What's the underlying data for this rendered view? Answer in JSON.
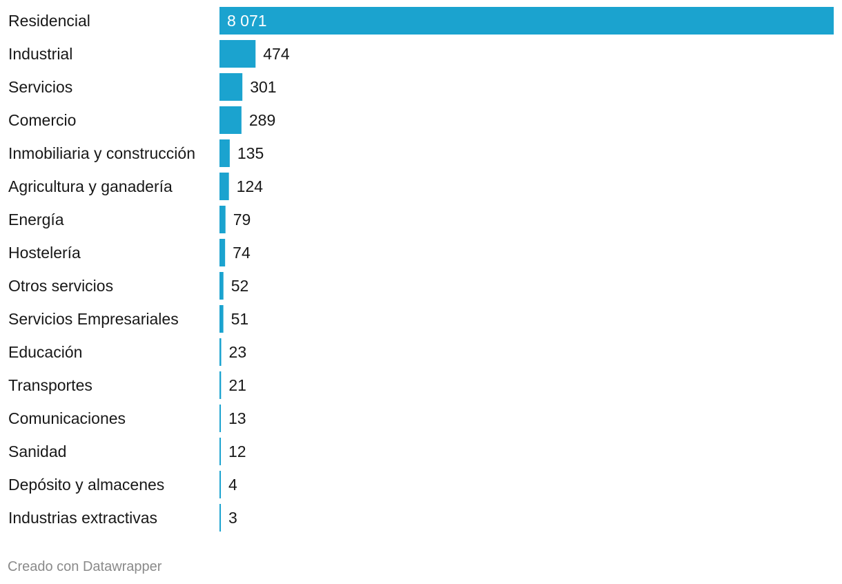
{
  "chart_data": {
    "type": "bar",
    "orientation": "horizontal",
    "categories": [
      "Residencial",
      "Industrial",
      "Servicios",
      "Comercio",
      "Inmobiliaria y construcción",
      "Agricultura y ganadería",
      "Energía",
      "Hostelería",
      "Otros servicios",
      "Servicios Empresariales",
      "Educación",
      "Transportes",
      "Comunicaciones",
      "Sanidad",
      "Depósito y almacenes",
      "Industrias extractivas"
    ],
    "values": [
      8071,
      474,
      301,
      289,
      135,
      124,
      79,
      74,
      52,
      51,
      23,
      21,
      13,
      12,
      4,
      3
    ],
    "value_labels": [
      "8 071",
      "474",
      "301",
      "289",
      "135",
      "124",
      "79",
      "74",
      "52",
      "51",
      "23",
      "21",
      "13",
      "12",
      "4",
      "3"
    ],
    "xlim": [
      0,
      8071
    ],
    "grid": false,
    "bar_color": "#1ba3cf",
    "title": "",
    "xlabel": "",
    "ylabel": ""
  },
  "footer": {
    "credit": "Creado con Datawrapper"
  }
}
